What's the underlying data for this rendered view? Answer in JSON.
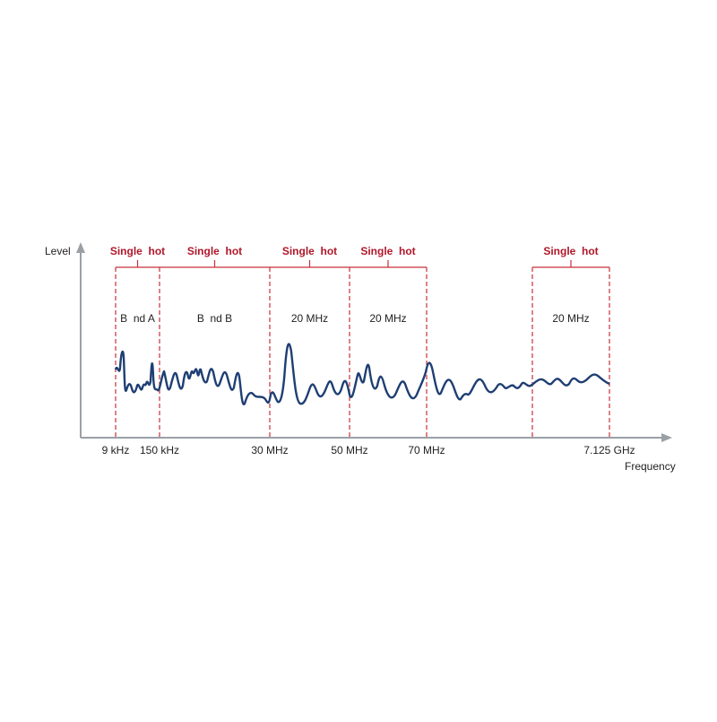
{
  "axis": {
    "y_label": "Level",
    "x_label": "Frequency"
  },
  "markers": [
    "9 kHz",
    "150 kHz",
    "30 MHz",
    "50 MHz",
    "70 MHz",
    "7.125 GHz"
  ],
  "segments": [
    {
      "header": "Single  hot",
      "label": "B  nd A"
    },
    {
      "header": "Single  hot",
      "label": "B  nd B"
    },
    {
      "header": "Single  hot",
      "label": "20 MHz"
    },
    {
      "header": "Single  hot",
      "label": "20 MHz"
    },
    {
      "header": "Single  hot",
      "label": "20 MHz"
    }
  ]
}
